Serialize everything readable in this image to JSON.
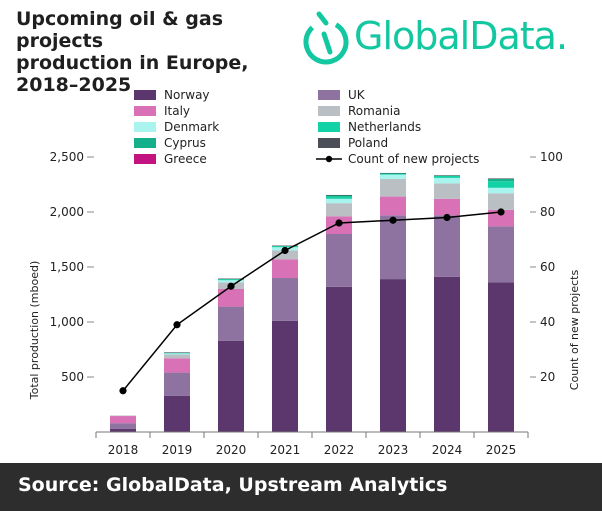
{
  "header": {
    "title_lines": [
      "Upcoming oil & gas projects",
      "production in Europe,",
      "2018–2025"
    ],
    "logo_text": "GlobalData.",
    "logo_icon": "globaldata-logo-icon"
  },
  "footer": {
    "source": "Source: GlobalData, Upstream Analytics"
  },
  "colors": {
    "Norway": "#5b376e",
    "UK": "#8e73a0",
    "Italy": "#d871b6",
    "Romania": "#b9bfc3",
    "Denmark": "#a9f4ee",
    "Netherlands": "#13d2a6",
    "Cyprus": "#14b089",
    "Poland": "#4d4f58",
    "Greece": "#c21380",
    "line": "#000000",
    "title": "#1f1f1f",
    "logo": "#13c7a1",
    "footer_bg": "#2d2d2d"
  },
  "chart_data": {
    "type": "bar",
    "stacked": true,
    "categories": [
      "2018",
      "2019",
      "2020",
      "2021",
      "2022",
      "2023",
      "2024",
      "2025"
    ],
    "series": [
      {
        "name": "Norway",
        "values": [
          30,
          330,
          830,
          1010,
          1320,
          1390,
          1410,
          1360
        ]
      },
      {
        "name": "UK",
        "values": [
          50,
          210,
          310,
          390,
          480,
          580,
          560,
          510
        ]
      },
      {
        "name": "Italy",
        "values": [
          65,
          130,
          160,
          170,
          160,
          170,
          150,
          150
        ]
      },
      {
        "name": "Romania",
        "values": [
          5,
          35,
          60,
          80,
          120,
          160,
          140,
          150
        ]
      },
      {
        "name": "Denmark",
        "values": [
          0,
          10,
          20,
          30,
          40,
          40,
          50,
          50
        ]
      },
      {
        "name": "Netherlands",
        "values": [
          0,
          5,
          10,
          10,
          20,
          10,
          20,
          60
        ]
      },
      {
        "name": "Cyprus",
        "values": [
          0,
          0,
          0,
          0,
          10,
          0,
          0,
          20
        ]
      },
      {
        "name": "Poland",
        "values": [
          0,
          5,
          5,
          5,
          5,
          5,
          5,
          5
        ]
      },
      {
        "name": "Greece",
        "values": [
          0,
          0,
          0,
          0,
          0,
          0,
          0,
          0
        ]
      }
    ],
    "line_series": {
      "name": "Count of new projects",
      "values": [
        15,
        39,
        53,
        66,
        76,
        77,
        78,
        80
      ]
    },
    "ylabel": "Total production (mboed)",
    "ylabel_right": "Count of new projects",
    "ylim": [
      0,
      2500
    ],
    "ylim_right": [
      0,
      100
    ],
    "yticks": [
      500,
      1000,
      1500,
      2000,
      2500
    ],
    "yticks_labels": [
      "500",
      "1,000",
      "1,500",
      "2,000",
      "2,500"
    ],
    "yticks_right": [
      20,
      40,
      60,
      80,
      100
    ],
    "legend_placement": "top",
    "grid": false
  }
}
